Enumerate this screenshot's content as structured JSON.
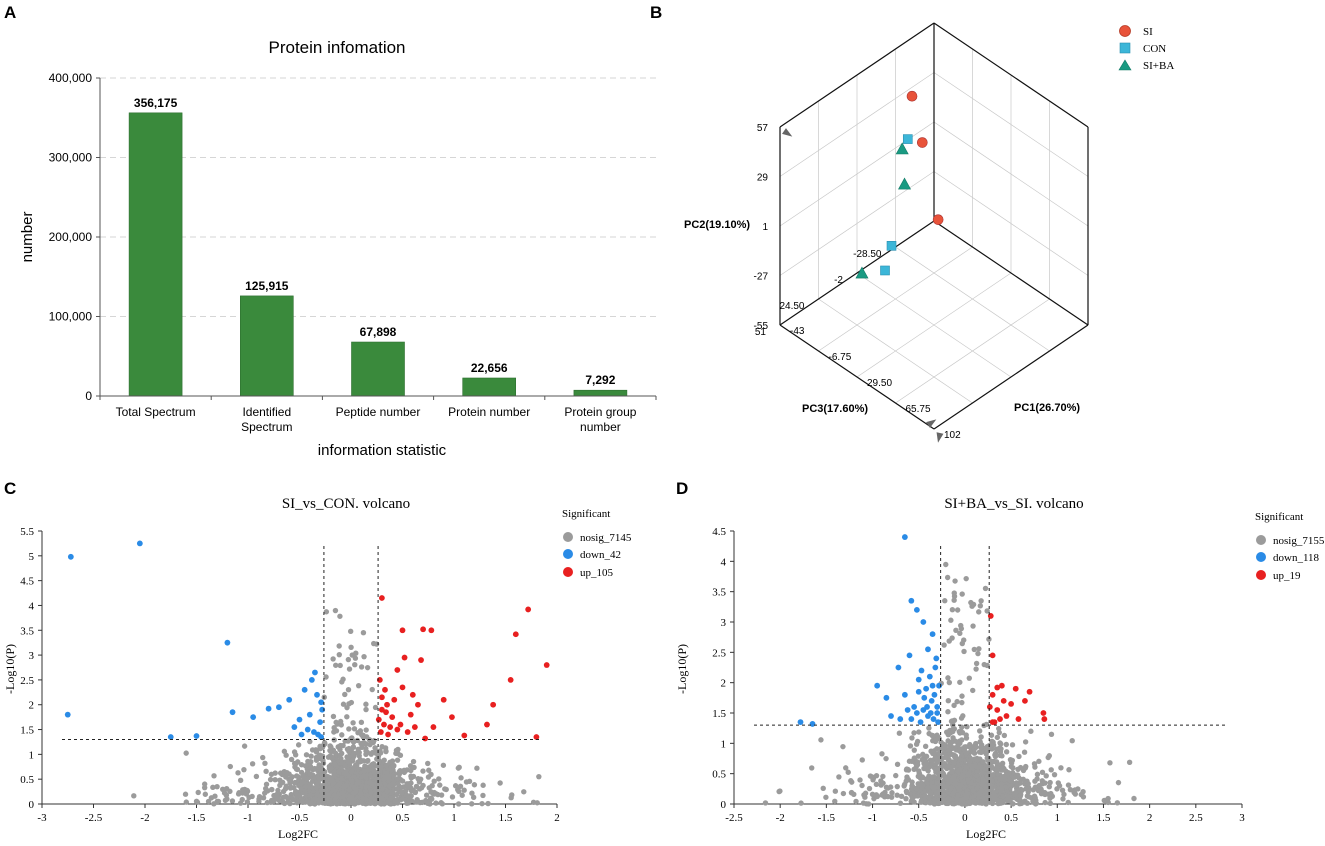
{
  "panels": {
    "A": "A",
    "B": "B",
    "C": "C",
    "D": "D"
  },
  "colors": {
    "bar": "#3a8a3c",
    "si": "#e8533a",
    "con": "#3cb6d8",
    "siba": "#1a9a82",
    "nosig": "#9b9b9b",
    "down": "#2a8be6",
    "up": "#e82020"
  },
  "chart_data": [
    {
      "id": "A",
      "type": "bar",
      "title": "Protein infomation",
      "xlabel": "information statistic",
      "ylabel": "number",
      "categories": [
        "Total Spectrum",
        "Identified\nSpectrum",
        "Peptide number",
        "Protein number",
        "Protein group\nnumber"
      ],
      "values": [
        356175,
        125915,
        67898,
        22656,
        7292
      ],
      "value_labels": [
        "356,175",
        "125,915",
        "67,898",
        "22,656",
        "7,292"
      ],
      "ylim": [
        0,
        400000
      ],
      "yticks": [
        0,
        100000,
        200000,
        300000,
        400000
      ],
      "ytick_labels": [
        "0",
        "100,000",
        "200,000",
        "300,000",
        "400,000"
      ],
      "grid": true
    },
    {
      "id": "B",
      "type": "scatter",
      "title": "",
      "axes": {
        "x": "PC1(26.70%)",
        "y": "PC2(19.10%)",
        "z": "PC3(17.60%)"
      },
      "x_ticks": [
        "-43",
        "-6.75",
        "29.50",
        "65.75",
        "102"
      ],
      "y_ticks": [
        "57",
        "29",
        "1",
        "-27",
        "-55"
      ],
      "z_ticks": [
        "51",
        "24.50",
        "-2",
        "-28.50"
      ],
      "legend": [
        "SI",
        "CON",
        "SI+BA"
      ],
      "series": [
        {
          "name": "SI",
          "marker": "circle",
          "points": [
            [
              -25,
              32,
              30
            ],
            [
              -18,
              5,
              35
            ],
            [
              -12,
              -42,
              45
            ]
          ]
        },
        {
          "name": "CON",
          "marker": "square",
          "points": [
            [
              10,
              25,
              10
            ],
            [
              35,
              -18,
              -15
            ],
            [
              45,
              -25,
              -25
            ]
          ]
        },
        {
          "name": "SI+BA",
          "marker": "triangle",
          "points": [
            [
              15,
              3,
              5
            ],
            [
              85,
              55,
              -30
            ],
            [
              -5,
              -40,
              -20
            ]
          ]
        }
      ]
    },
    {
      "id": "C",
      "type": "scatter",
      "title": "SI_vs_CON. volcano",
      "xlabel": "Log2FC",
      "ylabel": "-Log10(P)",
      "xlim": [
        -3,
        2
      ],
      "ylim": [
        0,
        5.5
      ],
      "xtick_labels": [
        "-3",
        "-2.5",
        "-2",
        "-1.5",
        "-1",
        "-0.5",
        "0",
        "0.5",
        "1",
        "1.5",
        "2"
      ],
      "ytick_labels": [
        "0",
        "0.5",
        "1",
        "1.5",
        "2",
        "2.5",
        "3",
        "3.5",
        "4",
        "4.5",
        "5",
        "5.5"
      ],
      "thresholds": {
        "fc": [
          -0.263,
          0.263
        ],
        "p": 1.3
      },
      "legend_title": "Significant",
      "legend": [
        "nosig_7145",
        "down_42",
        "up_105"
      ],
      "down_points": [
        [
          -2.72,
          4.98
        ],
        [
          -2.05,
          5.25
        ],
        [
          -1.2,
          3.25
        ],
        [
          -2.75,
          1.8
        ],
        [
          -1.75,
          1.35
        ],
        [
          -1.5,
          1.37
        ],
        [
          -1.15,
          1.85
        ],
        [
          -0.95,
          1.75
        ],
        [
          -0.8,
          1.92
        ],
        [
          -0.7,
          1.95
        ],
        [
          -0.6,
          2.1
        ],
        [
          -0.55,
          1.55
        ],
        [
          -0.5,
          1.7
        ],
        [
          -0.45,
          2.3
        ],
        [
          -0.42,
          1.5
        ],
        [
          -0.4,
          1.8
        ],
        [
          -0.38,
          2.5
        ],
        [
          -0.36,
          1.45
        ],
        [
          -0.33,
          2.2
        ],
        [
          -0.3,
          1.65
        ],
        [
          -0.29,
          1.35
        ],
        [
          -0.28,
          1.9
        ],
        [
          -0.35,
          2.65
        ],
        [
          -0.48,
          1.4
        ],
        [
          -0.32,
          1.4
        ],
        [
          -0.29,
          2.05
        ]
      ],
      "up_points": [
        [
          0.3,
          4.15
        ],
        [
          0.5,
          3.5
        ],
        [
          0.7,
          3.52
        ],
        [
          0.78,
          3.5
        ],
        [
          1.72,
          3.92
        ],
        [
          1.6,
          3.42
        ],
        [
          1.9,
          2.8
        ],
        [
          0.68,
          2.9
        ],
        [
          0.52,
          2.95
        ],
        [
          1.55,
          2.5
        ],
        [
          0.45,
          2.7
        ],
        [
          0.6,
          2.2
        ],
        [
          0.35,
          2.0
        ],
        [
          0.5,
          2.35
        ],
        [
          0.9,
          2.1
        ],
        [
          1.38,
          2.0
        ],
        [
          0.98,
          1.75
        ],
        [
          0.8,
          1.55
        ],
        [
          1.32,
          1.6
        ],
        [
          1.1,
          1.38
        ],
        [
          0.72,
          1.32
        ],
        [
          1.8,
          1.35
        ],
        [
          0.28,
          2.5
        ],
        [
          0.3,
          1.9
        ],
        [
          0.32,
          1.6
        ],
        [
          0.36,
          1.4
        ],
        [
          0.4,
          1.75
        ],
        [
          0.42,
          2.1
        ],
        [
          0.45,
          1.5
        ],
        [
          0.48,
          1.6
        ],
        [
          0.55,
          1.45
        ],
        [
          0.58,
          1.8
        ],
        [
          0.62,
          1.55
        ],
        [
          0.65,
          2.0
        ],
        [
          0.33,
          2.3
        ],
        [
          0.38,
          1.55
        ],
        [
          0.29,
          1.45
        ],
        [
          0.27,
          1.7
        ],
        [
          0.3,
          2.15
        ],
        [
          0.34,
          1.85
        ]
      ]
    },
    {
      "id": "D",
      "type": "scatter",
      "title": "SI+BA_vs_SI. volcano",
      "xlabel": "Log2FC",
      "ylabel": "-Log10(P)",
      "xlim": [
        -2.5,
        3
      ],
      "ylim": [
        0,
        4.5
      ],
      "xtick_labels": [
        "-2.5",
        "-2",
        "-1.5",
        "-1",
        "-0.5",
        "0",
        "0.5",
        "1",
        "1.5",
        "2",
        "2.5",
        "3"
      ],
      "ytick_labels": [
        "0",
        "0.5",
        "1",
        "1.5",
        "2",
        "2.5",
        "3",
        "3.5",
        "4",
        "4.5"
      ],
      "thresholds": {
        "fc": [
          -0.263,
          0.263
        ],
        "p": 1.3
      },
      "legend_title": "Significant",
      "legend": [
        "nosig_7155",
        "down_118",
        "up_19"
      ],
      "down_points": [
        [
          -0.65,
          4.4
        ],
        [
          -0.58,
          3.35
        ],
        [
          -0.52,
          3.2
        ],
        [
          -0.45,
          3.0
        ],
        [
          -0.4,
          2.55
        ],
        [
          -0.35,
          2.8
        ],
        [
          -0.72,
          2.25
        ],
        [
          -0.6,
          2.45
        ],
        [
          -0.5,
          2.05
        ],
        [
          -0.95,
          1.95
        ],
        [
          -0.85,
          1.75
        ],
        [
          -1.78,
          1.35
        ],
        [
          -1.65,
          1.32
        ],
        [
          -0.8,
          1.45
        ],
        [
          -0.7,
          1.4
        ],
        [
          -0.65,
          1.8
        ],
        [
          -0.55,
          1.6
        ],
        [
          -0.5,
          1.85
        ],
        [
          -0.48,
          1.35
        ],
        [
          -0.45,
          1.55
        ],
        [
          -0.42,
          1.9
        ],
        [
          -0.4,
          1.45
        ],
        [
          -0.38,
          2.1
        ],
        [
          -0.36,
          1.7
        ],
        [
          -0.34,
          1.4
        ],
        [
          -0.32,
          2.25
        ],
        [
          -0.3,
          1.6
        ],
        [
          -0.29,
          1.35
        ],
        [
          -0.28,
          1.95
        ],
        [
          -0.58,
          1.4
        ],
        [
          -0.62,
          1.55
        ],
        [
          -0.52,
          1.5
        ],
        [
          -0.44,
          1.75
        ],
        [
          -0.37,
          1.5
        ],
        [
          -0.33,
          1.8
        ],
        [
          -0.31,
          2.4
        ],
        [
          -0.47,
          2.2
        ],
        [
          -0.41,
          1.6
        ],
        [
          -0.35,
          1.95
        ],
        [
          -0.3,
          1.5
        ]
      ],
      "up_points": [
        [
          0.28,
          3.1
        ],
        [
          0.3,
          2.45
        ],
        [
          0.3,
          1.8
        ],
        [
          0.4,
          1.95
        ],
        [
          0.55,
          1.9
        ],
        [
          0.7,
          1.85
        ],
        [
          0.65,
          1.7
        ],
        [
          0.5,
          1.65
        ],
        [
          0.35,
          1.55
        ],
        [
          0.45,
          1.45
        ],
        [
          0.58,
          1.4
        ],
        [
          0.32,
          1.35
        ],
        [
          0.86,
          1.4
        ],
        [
          0.85,
          1.5
        ],
        [
          0.38,
          1.4
        ],
        [
          0.27,
          1.6
        ],
        [
          0.3,
          1.35
        ],
        [
          0.42,
          1.7
        ],
        [
          0.35,
          1.92
        ]
      ]
    }
  ]
}
